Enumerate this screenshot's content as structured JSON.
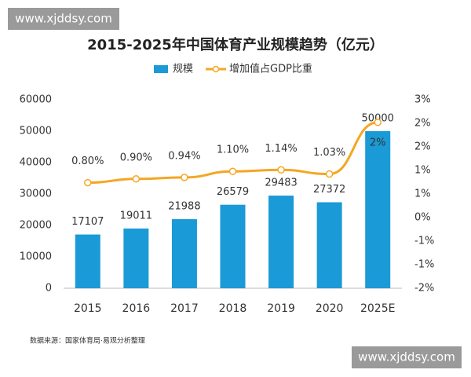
{
  "chart_data": {
    "type": "bar",
    "title": "2015-2025年中国体育产业规模趋势（亿元）",
    "categories": [
      "2015",
      "2016",
      "2017",
      "2018",
      "2019",
      "2020",
      "2025E"
    ],
    "series": [
      {
        "name": "规模",
        "type": "bar",
        "color": "#1a9ad6",
        "values": [
          17107,
          19011,
          21988,
          26579,
          29483,
          27372,
          50000
        ]
      },
      {
        "name": "增加值占GDP比重",
        "type": "line",
        "color": "#f5a623",
        "axis": "y2",
        "values": [
          0.8,
          0.9,
          0.94,
          1.1,
          1.14,
          1.03,
          2.4
        ],
        "value_labels": [
          "0.80%",
          "0.90%",
          "0.94%",
          "1.10%",
          "1.14%",
          "1.03%",
          "2%"
        ]
      }
    ],
    "ylim": [
      0,
      60000
    ],
    "yticks": [
      0,
      10000,
      20000,
      30000,
      40000,
      50000,
      60000
    ],
    "y2lim": [
      -2,
      3
    ],
    "y2ticks": [
      {
        "value": -2,
        "label": "-2%"
      },
      {
        "value": -1.375,
        "label": "-1%"
      },
      {
        "value": -0.75,
        "label": "-1%"
      },
      {
        "value": -0.125,
        "label": "0%"
      },
      {
        "value": 0.5,
        "label": "1%"
      },
      {
        "value": 1.125,
        "label": "1%"
      },
      {
        "value": 1.75,
        "label": "2%"
      },
      {
        "value": 2.375,
        "label": "2%"
      },
      {
        "value": 3,
        "label": "3%"
      }
    ],
    "grid": false,
    "legend": "top",
    "source": "数据来源：国家体育局·易观分析整理"
  },
  "watermarks": [
    "www.xjddsy.com",
    "www.xjddsy.com"
  ]
}
